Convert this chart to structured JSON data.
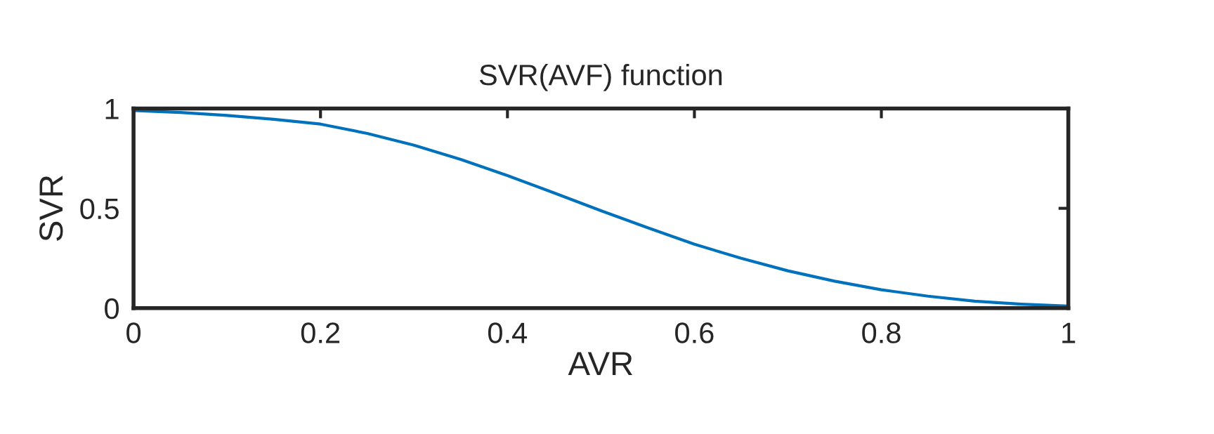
{
  "chart_data": {
    "type": "line",
    "title": "SVR(AVF) function",
    "xlabel": "AVR",
    "ylabel": "SVR",
    "x": [
      0,
      0.05,
      0.1,
      0.15,
      0.2,
      0.25,
      0.3,
      0.35,
      0.4,
      0.45,
      0.5,
      0.55,
      0.6,
      0.65,
      0.7,
      0.75,
      0.8,
      0.85,
      0.9,
      0.95,
      1
    ],
    "series": [
      {
        "color": "#0072bd",
        "values": [
          0.99,
          0.98,
          0.965,
          0.946,
          0.922,
          0.875,
          0.816,
          0.745,
          0.664,
          0.577,
          0.488,
          0.403,
          0.32,
          0.25,
          0.187,
          0.135,
          0.092,
          0.06,
          0.035,
          0.02,
          0.01
        ]
      }
    ],
    "xlim": [
      0,
      1
    ],
    "ylim": [
      0,
      1
    ],
    "xticks": [
      0,
      0.2,
      0.4,
      0.6,
      0.8,
      1
    ],
    "yticks": [
      0,
      0.5,
      1
    ],
    "grid": false,
    "legend": false,
    "line_style": "solid",
    "marker": "none"
  }
}
